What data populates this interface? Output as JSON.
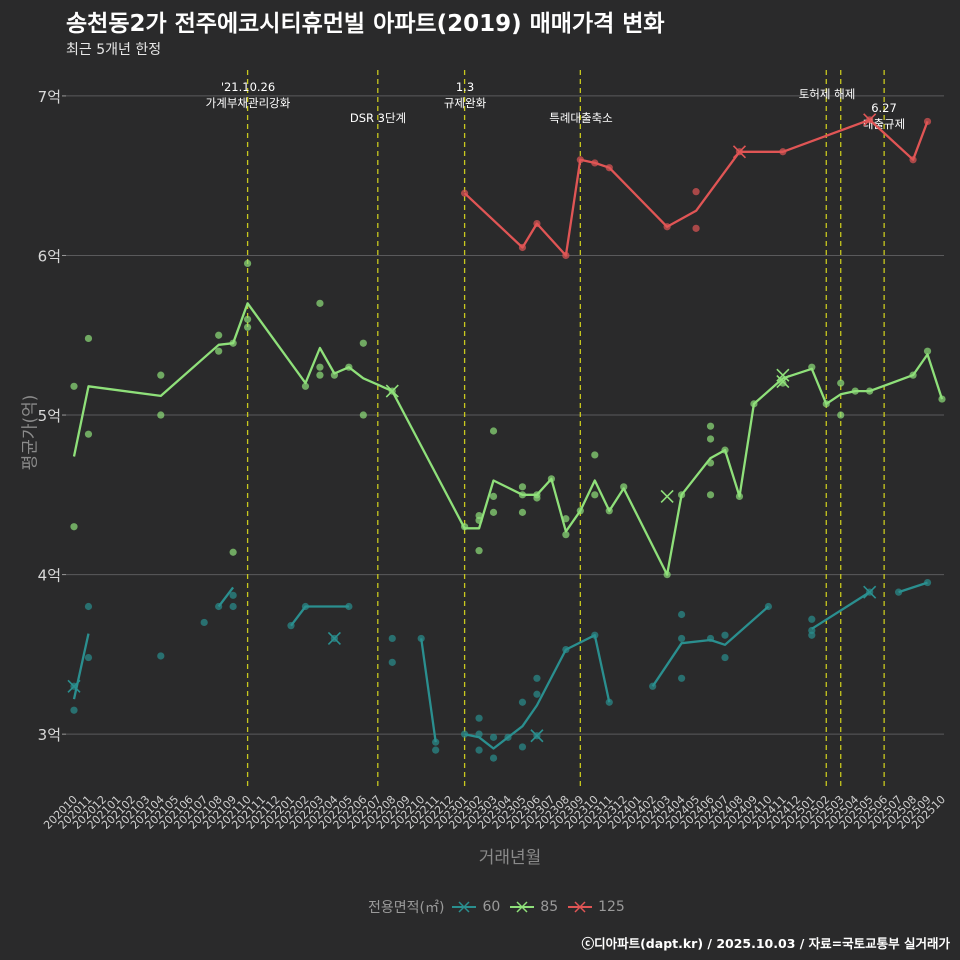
{
  "header": {
    "title": "송천동2가 전주에코시티휴먼빌 아파트(2019) 매매가격 변화",
    "subtitle": "최근 5개년 한정",
    "caption": "ⓒ디아파트(dapt.kr) / 2025.10.03 / 자료=국토교통부 실거래가"
  },
  "colors": {
    "area_60": "#2a8f8f",
    "area_85": "#8fe07a",
    "area_125": "#e05555",
    "event_line": "#c8c81e"
  },
  "chart_data": {
    "type": "line",
    "xlabel": "거래년월",
    "ylabel": "평균가(억)",
    "ylim": [
      2.65,
      7.2
    ],
    "yticks": [
      3,
      4,
      5,
      6,
      7
    ],
    "ytick_labels": [
      "3억",
      "4억",
      "5억",
      "6억",
      "7억"
    ],
    "grid": true,
    "x": [
      "202010",
      "202011",
      "202012",
      "202101",
      "202102",
      "202103",
      "202104",
      "202105",
      "202106",
      "202107",
      "202108",
      "202109",
      "202110",
      "202111",
      "202112",
      "202201",
      "202202",
      "202203",
      "202204",
      "202205",
      "202206",
      "202207",
      "202208",
      "202209",
      "202210",
      "202211",
      "202212",
      "202301",
      "202302",
      "202303",
      "202304",
      "202305",
      "202306",
      "202307",
      "202308",
      "202309",
      "202310",
      "202311",
      "202312",
      "202401",
      "202402",
      "202403",
      "202404",
      "202405",
      "202406",
      "202407",
      "202408",
      "202409",
      "202410",
      "202411",
      "202412",
      "202501",
      "202502",
      "202503",
      "202504",
      "202505",
      "202506",
      "202507",
      "202508",
      "202509",
      "202510"
    ],
    "events": [
      {
        "month": "202110",
        "label": "'21.10.26\n가계부채관리강화"
      },
      {
        "month": "202207",
        "label": "DSR 3단계"
      },
      {
        "month": "202301",
        "label": "1.3\n규제완화"
      },
      {
        "month": "202309",
        "label": "특례대출축소"
      },
      {
        "month": "202502",
        "label": "토허제 해제"
      },
      {
        "month": "202503",
        "label": ""
      },
      {
        "month": "202506",
        "label": "6.27\n대출규제"
      }
    ],
    "legend_title": "전용면적(㎡)",
    "series": [
      {
        "name": "60",
        "segments": [
          [
            [
              "202010",
              3.22
            ],
            [
              "202011",
              3.63
            ]
          ],
          [
            [
              "202108",
              3.8
            ],
            [
              "202109",
              3.92
            ]
          ],
          [
            [
              "202201",
              3.68
            ],
            [
              "202202",
              3.8
            ],
            [
              "202205",
              3.8
            ]
          ],
          [
            [
              "202210",
              3.6
            ],
            [
              "202211",
              2.95
            ]
          ],
          [
            [
              "202301",
              3.0
            ],
            [
              "202302",
              2.98
            ],
            [
              "202303",
              2.91
            ],
            [
              "202304",
              2.98
            ],
            [
              "202305",
              3.05
            ],
            [
              "202306",
              3.18
            ],
            [
              "202308",
              3.53
            ],
            [
              "202310",
              3.62
            ],
            [
              "202311",
              3.2
            ]
          ],
          [
            [
              "202402",
              3.3
            ],
            [
              "202404",
              3.57
            ],
            [
              "202406",
              3.59
            ],
            [
              "202407",
              3.56
            ],
            [
              "202410",
              3.8
            ]
          ],
          [
            [
              "202501",
              3.66
            ],
            [
              "202505",
              3.89
            ]
          ],
          [
            [
              "202507",
              3.89
            ],
            [
              "202509",
              3.95
            ]
          ]
        ],
        "points": [
          [
            "202010",
            3.15
          ],
          [
            "202010",
            3.3
          ],
          [
            "202011",
            3.8
          ],
          [
            "202011",
            3.48
          ],
          [
            "202104",
            3.49
          ],
          [
            "202107",
            3.7
          ],
          [
            "202108",
            3.8
          ],
          [
            "202109",
            3.87
          ],
          [
            "202109",
            3.8
          ],
          [
            "202201",
            3.68
          ],
          [
            "202202",
            3.8
          ],
          [
            "202205",
            3.8
          ],
          [
            "202204",
            3.6
          ],
          [
            "202208",
            3.6
          ],
          [
            "202208",
            3.45
          ],
          [
            "202210",
            3.6
          ],
          [
            "202211",
            2.95
          ],
          [
            "202211",
            2.9
          ],
          [
            "202301",
            3.0
          ],
          [
            "202302",
            3.1
          ],
          [
            "202302",
            3.0
          ],
          [
            "202302",
            2.9
          ],
          [
            "202303",
            2.98
          ],
          [
            "202303",
            2.85
          ],
          [
            "202304",
            2.98
          ],
          [
            "202305",
            3.2
          ],
          [
            "202305",
            2.92
          ],
          [
            "202306",
            3.35
          ],
          [
            "202306",
            3.25
          ],
          [
            "202306",
            2.99
          ],
          [
            "202308",
            3.53
          ],
          [
            "202310",
            3.62
          ],
          [
            "202311",
            3.2
          ],
          [
            "202402",
            3.3
          ],
          [
            "202404",
            3.75
          ],
          [
            "202404",
            3.6
          ],
          [
            "202404",
            3.35
          ],
          [
            "202406",
            3.6
          ],
          [
            "202407",
            3.62
          ],
          [
            "202407",
            3.48
          ],
          [
            "202410",
            3.8
          ],
          [
            "202501",
            3.72
          ],
          [
            "202501",
            3.65
          ],
          [
            "202501",
            3.62
          ],
          [
            "202505",
            3.89
          ],
          [
            "202507",
            3.89
          ],
          [
            "202509",
            3.95
          ]
        ],
        "crosses": [
          [
            "202010",
            3.3
          ],
          [
            "202204",
            3.6
          ],
          [
            "202306",
            2.99
          ],
          [
            "202505",
            3.89
          ]
        ]
      },
      {
        "name": "85",
        "segments": [
          [
            [
              "202010",
              4.74
            ],
            [
              "202011",
              5.18
            ],
            [
              "202104",
              5.12
            ],
            [
              "202108",
              5.44
            ],
            [
              "202109",
              5.45
            ],
            [
              "202110",
              5.7
            ],
            [
              "202202",
              5.2
            ],
            [
              "202203",
              5.42
            ],
            [
              "202204",
              5.26
            ],
            [
              "202205",
              5.3
            ],
            [
              "202206",
              5.23
            ],
            [
              "202208",
              5.15
            ],
            [
              "202301",
              4.29
            ],
            [
              "202302",
              4.29
            ],
            [
              "202303",
              4.59
            ],
            [
              "202305",
              4.5
            ],
            [
              "202306",
              4.5
            ],
            [
              "202307",
              4.6
            ],
            [
              "202308",
              4.27
            ],
            [
              "202309",
              4.4
            ],
            [
              "202310",
              4.59
            ],
            [
              "202311",
              4.4
            ],
            [
              "202312",
              4.54
            ],
            [
              "202403",
              4.0
            ],
            [
              "202404",
              4.5
            ],
            [
              "202406",
              4.73
            ],
            [
              "202407",
              4.78
            ],
            [
              "202408",
              4.49
            ],
            [
              "202409",
              5.07
            ],
            [
              "202411",
              5.23
            ],
            [
              "202501",
              5.29
            ],
            [
              "202502",
              5.07
            ],
            [
              "202503",
              5.13
            ],
            [
              "202504",
              5.15
            ],
            [
              "202505",
              5.15
            ],
            [
              "202508",
              5.25
            ],
            [
              "202509",
              5.38
            ],
            [
              "202510",
              5.1
            ]
          ]
        ],
        "points": [
          [
            "202010",
            5.18
          ],
          [
            "202010",
            4.3
          ],
          [
            "202011",
            5.48
          ],
          [
            "202011",
            4.88
          ],
          [
            "202104",
            5.25
          ],
          [
            "202104",
            5.0
          ],
          [
            "202108",
            5.5
          ],
          [
            "202108",
            5.4
          ],
          [
            "202109",
            5.45
          ],
          [
            "202109",
            4.14
          ],
          [
            "202110",
            5.95
          ],
          [
            "202110",
            5.6
          ],
          [
            "202110",
            5.55
          ],
          [
            "202202",
            5.18
          ],
          [
            "202203",
            5.7
          ],
          [
            "202203",
            5.3
          ],
          [
            "202203",
            5.25
          ],
          [
            "202204",
            5.25
          ],
          [
            "202205",
            5.3
          ],
          [
            "202206",
            5.45
          ],
          [
            "202206",
            5.0
          ],
          [
            "202208",
            5.15
          ],
          [
            "202301",
            4.3
          ],
          [
            "202302",
            4.37
          ],
          [
            "202302",
            4.34
          ],
          [
            "202302",
            4.15
          ],
          [
            "202303",
            4.9
          ],
          [
            "202303",
            4.49
          ],
          [
            "202303",
            4.39
          ],
          [
            "202305",
            4.55
          ],
          [
            "202305",
            4.5
          ],
          [
            "202305",
            4.39
          ],
          [
            "202306",
            4.5
          ],
          [
            "202306",
            4.48
          ],
          [
            "202307",
            4.6
          ],
          [
            "202308",
            4.35
          ],
          [
            "202308",
            4.25
          ],
          [
            "202309",
            4.4
          ],
          [
            "202310",
            4.75
          ],
          [
            "202310",
            4.5
          ],
          [
            "202311",
            4.4
          ],
          [
            "202312",
            4.55
          ],
          [
            "202403",
            4.0
          ],
          [
            "202404",
            4.5
          ],
          [
            "202406",
            4.93
          ],
          [
            "202406",
            4.85
          ],
          [
            "202406",
            4.7
          ],
          [
            "202406",
            4.5
          ],
          [
            "202407",
            4.78
          ],
          [
            "202408",
            4.49
          ],
          [
            "202409",
            5.07
          ],
          [
            "202411",
            5.2
          ],
          [
            "202501",
            5.3
          ],
          [
            "202502",
            5.07
          ],
          [
            "202503",
            5.2
          ],
          [
            "202503",
            5.0
          ],
          [
            "202504",
            5.15
          ],
          [
            "202505",
            5.15
          ],
          [
            "202508",
            5.25
          ],
          [
            "202509",
            5.4
          ],
          [
            "202510",
            5.1
          ]
        ],
        "crosses": [
          [
            "202208",
            5.15
          ],
          [
            "202403",
            4.49
          ],
          [
            "202411",
            5.25
          ],
          [
            "202411",
            5.21
          ]
        ]
      },
      {
        "name": "125",
        "segments": [
          [
            [
              "202301",
              6.39
            ],
            [
              "202305",
              6.05
            ],
            [
              "202306",
              6.2
            ],
            [
              "202308",
              6.0
            ],
            [
              "202309",
              6.6
            ],
            [
              "202310",
              6.58
            ],
            [
              "202311",
              6.55
            ],
            [
              "202403",
              6.18
            ],
            [
              "202405",
              6.28
            ],
            [
              "202408",
              6.65
            ],
            [
              "202411",
              6.65
            ],
            [
              "202505",
              6.85
            ],
            [
              "202508",
              6.6
            ],
            [
              "202509",
              6.84
            ]
          ]
        ],
        "points": [
          [
            "202301",
            6.39
          ],
          [
            "202305",
            6.05
          ],
          [
            "202306",
            6.2
          ],
          [
            "202308",
            6.0
          ],
          [
            "202309",
            6.6
          ],
          [
            "202310",
            6.58
          ],
          [
            "202311",
            6.55
          ],
          [
            "202403",
            6.18
          ],
          [
            "202405",
            6.4
          ],
          [
            "202405",
            6.17
          ],
          [
            "202408",
            6.65
          ],
          [
            "202411",
            6.65
          ],
          [
            "202505",
            6.85
          ],
          [
            "202508",
            6.6
          ],
          [
            "202509",
            6.84
          ]
        ],
        "crosses": [
          [
            "202408",
            6.65
          ],
          [
            "202505",
            6.85
          ]
        ]
      }
    ]
  }
}
